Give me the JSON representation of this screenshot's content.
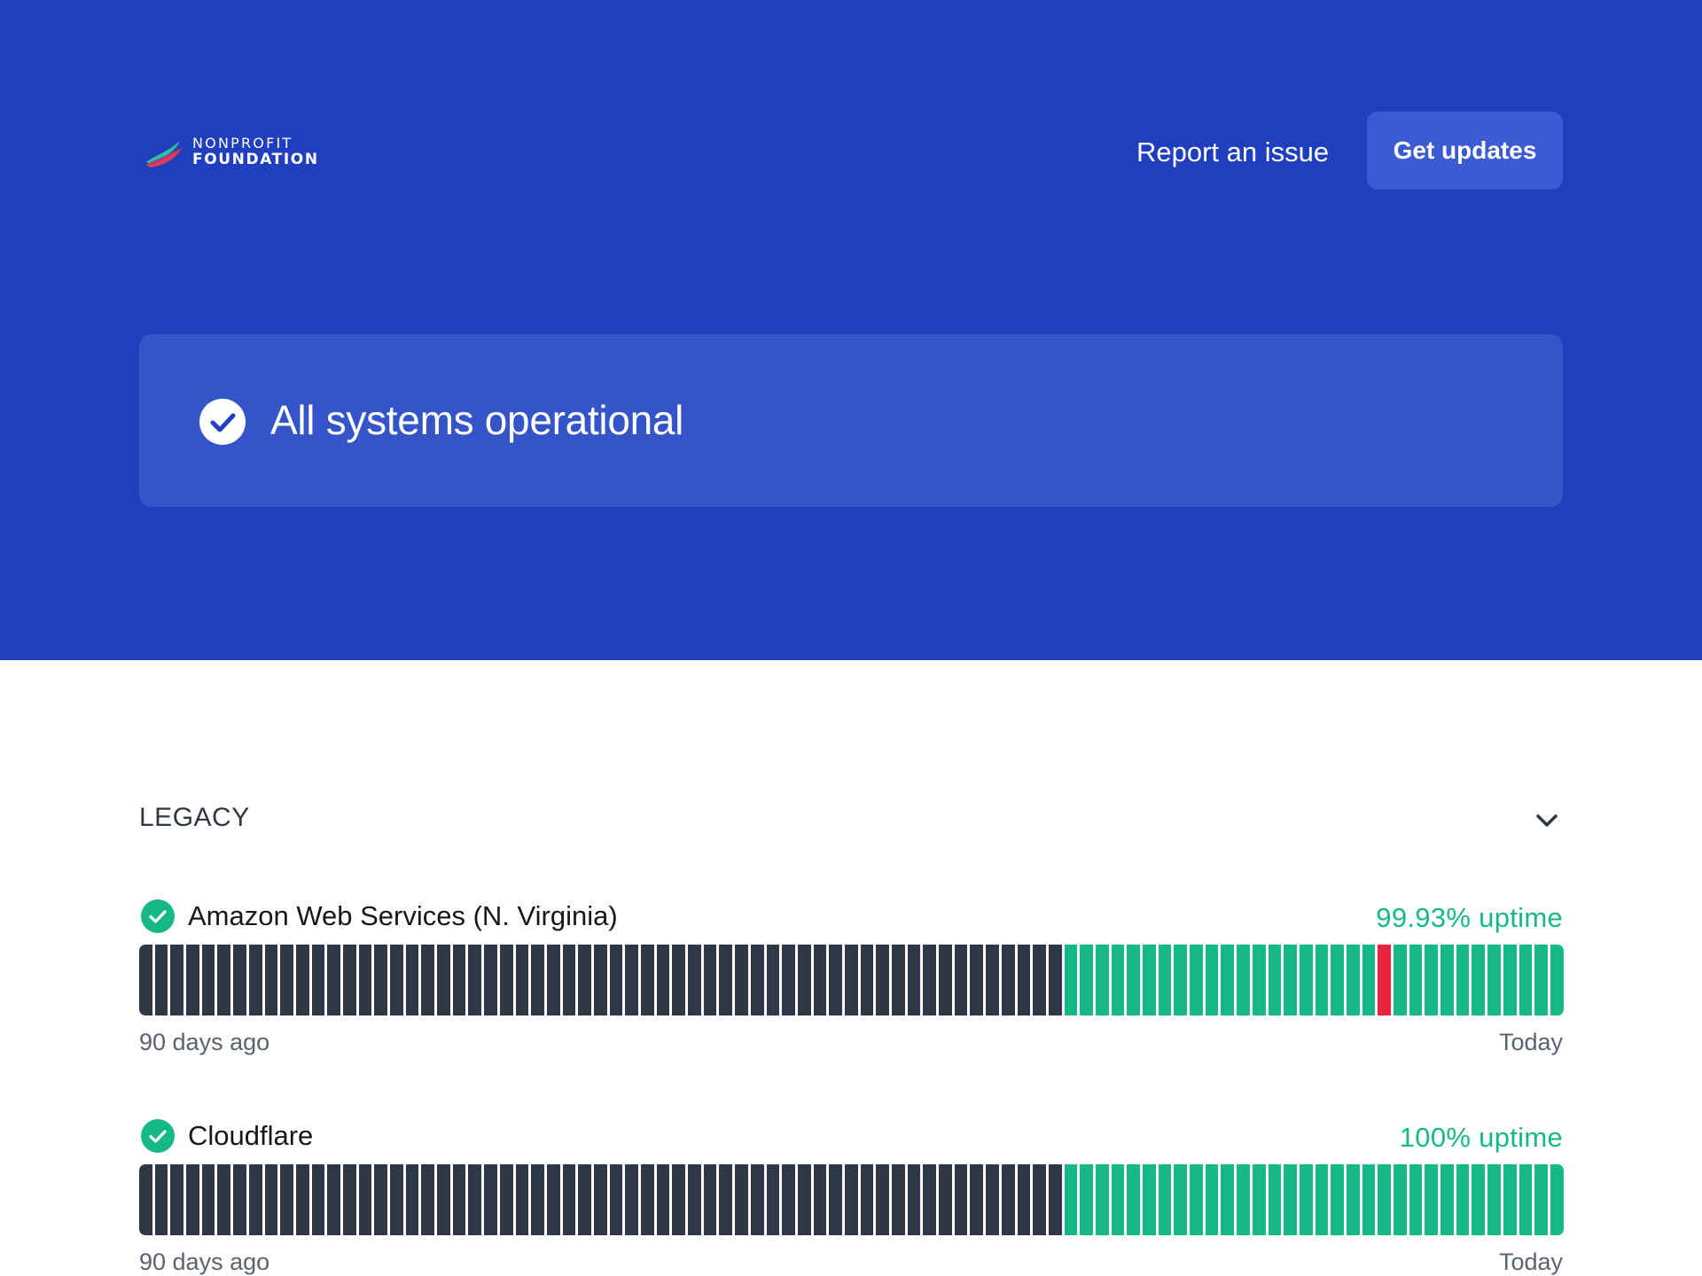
{
  "header": {
    "logo": {
      "line1": "NONPROFIT",
      "line2": "FOUNDATION"
    },
    "report_link": "Report an issue",
    "updates_button": "Get updates"
  },
  "status": {
    "title": "All systems operational"
  },
  "group": {
    "title": "LEGACY",
    "expanded": true
  },
  "colors": {
    "header_bg": "#1f3fbf",
    "operational": "#16b886",
    "outage": "#e8233d",
    "no_data": "#2f3847"
  },
  "services": [
    {
      "name": "Amazon Web Services (N. Virginia)",
      "uptime": "99.93% uptime",
      "label_start": "90 days ago",
      "label_end": "Today",
      "bars": [
        "no-data",
        "no-data",
        "no-data",
        "no-data",
        "no-data",
        "no-data",
        "no-data",
        "no-data",
        "no-data",
        "no-data",
        "no-data",
        "no-data",
        "no-data",
        "no-data",
        "no-data",
        "no-data",
        "no-data",
        "no-data",
        "no-data",
        "no-data",
        "no-data",
        "no-data",
        "no-data",
        "no-data",
        "no-data",
        "no-data",
        "no-data",
        "no-data",
        "no-data",
        "no-data",
        "no-data",
        "no-data",
        "no-data",
        "no-data",
        "no-data",
        "no-data",
        "no-data",
        "no-data",
        "no-data",
        "no-data",
        "no-data",
        "no-data",
        "no-data",
        "no-data",
        "no-data",
        "no-data",
        "no-data",
        "no-data",
        "no-data",
        "no-data",
        "no-data",
        "no-data",
        "no-data",
        "no-data",
        "no-data",
        "no-data",
        "no-data",
        "no-data",
        "no-data",
        "operational",
        "operational",
        "operational",
        "operational",
        "operational",
        "operational",
        "operational",
        "operational",
        "operational",
        "operational",
        "operational",
        "operational",
        "operational",
        "operational",
        "operational",
        "operational",
        "operational",
        "operational",
        "operational",
        "operational",
        "outage",
        "operational",
        "operational",
        "operational",
        "operational",
        "operational",
        "operational",
        "operational",
        "operational",
        "operational",
        "operational",
        "operational"
      ]
    },
    {
      "name": "Cloudflare",
      "uptime": "100% uptime",
      "label_start": "90 days ago",
      "label_end": "Today",
      "bars": [
        "no-data",
        "no-data",
        "no-data",
        "no-data",
        "no-data",
        "no-data",
        "no-data",
        "no-data",
        "no-data",
        "no-data",
        "no-data",
        "no-data",
        "no-data",
        "no-data",
        "no-data",
        "no-data",
        "no-data",
        "no-data",
        "no-data",
        "no-data",
        "no-data",
        "no-data",
        "no-data",
        "no-data",
        "no-data",
        "no-data",
        "no-data",
        "no-data",
        "no-data",
        "no-data",
        "no-data",
        "no-data",
        "no-data",
        "no-data",
        "no-data",
        "no-data",
        "no-data",
        "no-data",
        "no-data",
        "no-data",
        "no-data",
        "no-data",
        "no-data",
        "no-data",
        "no-data",
        "no-data",
        "no-data",
        "no-data",
        "no-data",
        "no-data",
        "no-data",
        "no-data",
        "no-data",
        "no-data",
        "no-data",
        "no-data",
        "no-data",
        "no-data",
        "no-data",
        "operational",
        "operational",
        "operational",
        "operational",
        "operational",
        "operational",
        "operational",
        "operational",
        "operational",
        "operational",
        "operational",
        "operational",
        "operational",
        "operational",
        "operational",
        "operational",
        "operational",
        "operational",
        "operational",
        "operational",
        "operational",
        "operational",
        "operational",
        "operational",
        "operational",
        "operational",
        "operational",
        "operational",
        "operational",
        "operational",
        "operational",
        "operational"
      ]
    }
  ]
}
